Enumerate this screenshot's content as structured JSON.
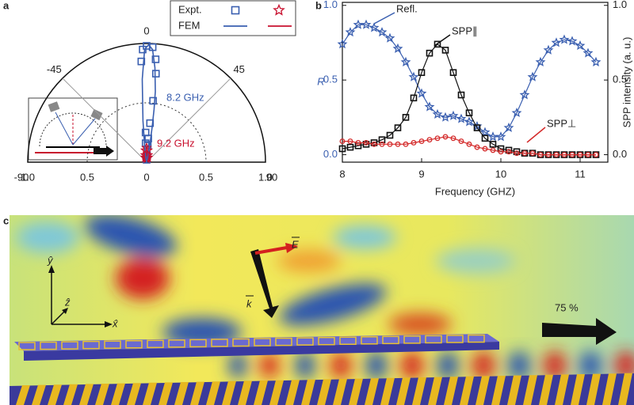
{
  "panel_labels": [
    "a",
    "b",
    "c"
  ],
  "chart_data": [
    {
      "type": "polar",
      "thetaticks": [
        -90,
        -45,
        0,
        45,
        90
      ],
      "rlim": [
        0,
        1
      ],
      "rticks": [
        0,
        {
          "value": 0.5,
          "label": "0.5"
        },
        {
          "value": 1,
          "label": "1.0"
        }
      ],
      "series": [
        {
          "name": "Expt.",
          "label": "8.2 GHz",
          "color": "#3a5fb0",
          "marker": "square",
          "theta": [
            -3,
            -2,
            0,
            3,
            5,
            6,
            6,
            5,
            4,
            4,
            -2,
            -3,
            3,
            0
          ],
          "r": [
            0.85,
            0.95,
            0.98,
            0.97,
            0.87,
            0.75,
            0.52,
            0.33,
            0.2,
            0.14,
            0.25,
            0.16,
            0.06,
            0.02
          ]
        },
        {
          "name": "Expt.",
          "label": "9.2 GHz",
          "color": "#c8102e",
          "marker": "star",
          "theta": [
            -10,
            -5,
            0,
            5,
            10,
            -15,
            15,
            0
          ],
          "r": [
            0.06,
            0.1,
            0.12,
            0.1,
            0.06,
            0.04,
            0.04,
            0.03
          ]
        },
        {
          "name": "FEM",
          "color": "#3a5fb0",
          "marker": "line",
          "theta": [
            -90,
            -20,
            -8,
            -5,
            -3,
            -1,
            1,
            3,
            5,
            7,
            8,
            9,
            10,
            12,
            20,
            90
          ],
          "r": [
            0,
            0.01,
            0.1,
            0.35,
            0.7,
            0.95,
            0.99,
            0.95,
            0.8,
            0.6,
            0.45,
            0.3,
            0.18,
            0.06,
            0.01,
            0
          ]
        },
        {
          "name": "FEM",
          "color": "#c8102e",
          "marker": "line",
          "theta": [
            -60,
            -30,
            -15,
            0,
            15,
            30,
            60
          ],
          "r": [
            0.01,
            0.04,
            0.08,
            0.1,
            0.08,
            0.04,
            0.01
          ]
        }
      ]
    },
    {
      "type": "line",
      "x_label": "Frequency (GHZ)",
      "y_label": "R",
      "y2_label": "SPP intensity (a. u.)",
      "x": [
        8.0,
        8.1,
        8.2,
        8.3,
        8.4,
        8.5,
        8.6,
        8.7,
        8.8,
        8.9,
        9.0,
        9.1,
        9.2,
        9.3,
        9.4,
        9.5,
        9.6,
        9.7,
        9.8,
        9.9,
        10.0,
        10.1,
        10.2,
        10.3,
        10.4,
        10.5,
        10.6,
        10.7,
        10.8,
        10.9,
        11.0,
        11.1,
        11.2
      ],
      "xlim": [
        8,
        11.35
      ],
      "xticks": [
        8,
        9,
        10,
        11
      ],
      "ylim": [
        -0.05,
        1.02
      ],
      "yticks": [
        {
          "value": 0,
          "label": "0.0"
        },
        {
          "value": 0.5,
          "label": "0.5"
        },
        {
          "value": 1,
          "label": "1.0"
        }
      ],
      "y2lim": [
        -0.05,
        1.02
      ],
      "y2ticks": [
        {
          "value": 0,
          "label": "0.0"
        },
        {
          "value": 0.5,
          "label": "0.5"
        },
        {
          "value": 1,
          "label": "1.0"
        }
      ],
      "series": [
        {
          "name": "Refl.",
          "color": "#3a5fb0",
          "marker": "star",
          "values": [
            0.74,
            0.82,
            0.87,
            0.87,
            0.85,
            0.82,
            0.78,
            0.71,
            0.62,
            0.52,
            0.41,
            0.32,
            0.27,
            0.25,
            0.26,
            0.24,
            0.22,
            0.19,
            0.15,
            0.12,
            0.12,
            0.18,
            0.28,
            0.4,
            0.52,
            0.62,
            0.7,
            0.75,
            0.77,
            0.76,
            0.73,
            0.68,
            0.62
          ]
        },
        {
          "name": "SPP∥",
          "color": "#111111",
          "marker": "square",
          "axis": "y2",
          "values": [
            0.04,
            0.05,
            0.06,
            0.07,
            0.08,
            0.1,
            0.13,
            0.18,
            0.25,
            0.38,
            0.55,
            0.68,
            0.74,
            0.7,
            0.55,
            0.4,
            0.28,
            0.18,
            0.11,
            0.07,
            0.04,
            0.03,
            0.02,
            0.01,
            0.01,
            0,
            0,
            0,
            0,
            0,
            0,
            0,
            0
          ]
        },
        {
          "name": "SPP⊥",
          "color": "#d42a2a",
          "marker": "circle",
          "axis": "y2",
          "values": [
            0.09,
            0.09,
            0.08,
            0.08,
            0.07,
            0.07,
            0.07,
            0.07,
            0.07,
            0.08,
            0.09,
            0.1,
            0.11,
            0.12,
            0.11,
            0.09,
            0.07,
            0.05,
            0.04,
            0.03,
            0.02,
            0.02,
            0.01,
            0.01,
            0.01,
            0,
            0,
            0,
            0,
            0,
            0,
            0,
            0
          ]
        }
      ]
    }
  ],
  "field_map": {
    "transmission_label": "75 %",
    "axes": [
      "ŷ",
      "ẑ",
      "x̂"
    ],
    "field_vector": "E",
    "wave_vector": "k"
  }
}
